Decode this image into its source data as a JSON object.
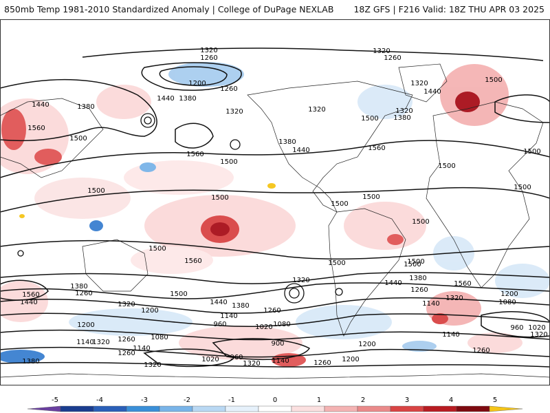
{
  "header": {
    "title_left": "850mb Temp 1981-2010 Standardized Anomaly | College of DuPage NEXLAB",
    "title_right": "18Z GFS | F216 Valid: 18Z THU APR 03 2025"
  },
  "colors": {
    "neg_strong": "#1a3d8f",
    "neg_mid": "#3a7fd0",
    "neg_light": "#a9cdef",
    "neg_pale": "#d9e9f8",
    "pos_pale": "#fbdada",
    "pos_light": "#f2a7a7",
    "pos_mid": "#e05555",
    "pos_strong": "#a80f1a",
    "pos_extreme": "#f5c518",
    "contour": "#111111",
    "coast": "#222222"
  },
  "colorbar": {
    "ticks": [
      "-5",
      "-4",
      "-3",
      "-2",
      "-1",
      "0",
      "1",
      "2",
      "3",
      "4",
      "5"
    ],
    "colors": [
      "#6a3fa0",
      "#1a3d8f",
      "#2a5fb8",
      "#3a8fd8",
      "#79b4e8",
      "#b9d8f3",
      "#e6f1fb",
      "#ffffff",
      "#fbe0e0",
      "#f4b3b3",
      "#ea8a8a",
      "#d94444",
      "#b81c22",
      "#7e0a10",
      "#f5c518"
    ]
  },
  "contour_labels": [
    {
      "text": "1320"
    },
    {
      "text": "1260"
    },
    {
      "text": "1200"
    },
    {
      "text": "1260"
    },
    {
      "text": "1320"
    },
    {
      "text": "1320"
    },
    {
      "text": "1260"
    },
    {
      "text": "1320"
    },
    {
      "text": "1440"
    },
    {
      "text": "1500"
    },
    {
      "text": "1440"
    },
    {
      "text": "1380"
    },
    {
      "text": "1560"
    },
    {
      "text": "1500"
    },
    {
      "text": "1440"
    },
    {
      "text": "1380"
    },
    {
      "text": "1320"
    },
    {
      "text": "1320"
    },
    {
      "text": "1500"
    },
    {
      "text": "1380"
    },
    {
      "text": "1560"
    },
    {
      "text": "1500"
    },
    {
      "text": "1380"
    },
    {
      "text": "1440"
    },
    {
      "text": "1560"
    },
    {
      "text": "1500"
    },
    {
      "text": "1500"
    },
    {
      "text": "1500"
    },
    {
      "text": "1500"
    },
    {
      "text": "1500"
    },
    {
      "text": "1500"
    },
    {
      "text": "1500"
    },
    {
      "text": "1500"
    },
    {
      "text": "1500"
    },
    {
      "text": "1500"
    },
    {
      "text": "1560"
    },
    {
      "text": "1500"
    },
    {
      "text": "1500"
    },
    {
      "text": "1560"
    },
    {
      "text": "1380"
    },
    {
      "text": "1560"
    },
    {
      "text": "1260"
    },
    {
      "text": "1440"
    },
    {
      "text": "1500"
    },
    {
      "text": "1320"
    },
    {
      "text": "1440"
    },
    {
      "text": "1380"
    },
    {
      "text": "1440"
    },
    {
      "text": "1380"
    },
    {
      "text": "1260"
    },
    {
      "text": "1320"
    },
    {
      "text": "1200"
    },
    {
      "text": "1140"
    },
    {
      "text": "960"
    },
    {
      "text": "1020"
    },
    {
      "text": "1080"
    },
    {
      "text": "1260"
    },
    {
      "text": "1140"
    },
    {
      "text": "1320"
    },
    {
      "text": "1200"
    },
    {
      "text": "1080"
    },
    {
      "text": "960"
    },
    {
      "text": "1020"
    },
    {
      "text": "1320"
    },
    {
      "text": "1200"
    },
    {
      "text": "1320"
    },
    {
      "text": "1260"
    },
    {
      "text": "1080"
    },
    {
      "text": "1140"
    },
    {
      "text": "1380"
    },
    {
      "text": "900"
    },
    {
      "text": "1200"
    },
    {
      "text": "1260"
    },
    {
      "text": "1140"
    },
    {
      "text": "960"
    },
    {
      "text": "1020"
    },
    {
      "text": "1320"
    },
    {
      "text": "1140"
    },
    {
      "text": "1320"
    },
    {
      "text": "1200"
    },
    {
      "text": "1260"
    },
    {
      "text": "1140"
    },
    {
      "text": "1260"
    }
  ]
}
